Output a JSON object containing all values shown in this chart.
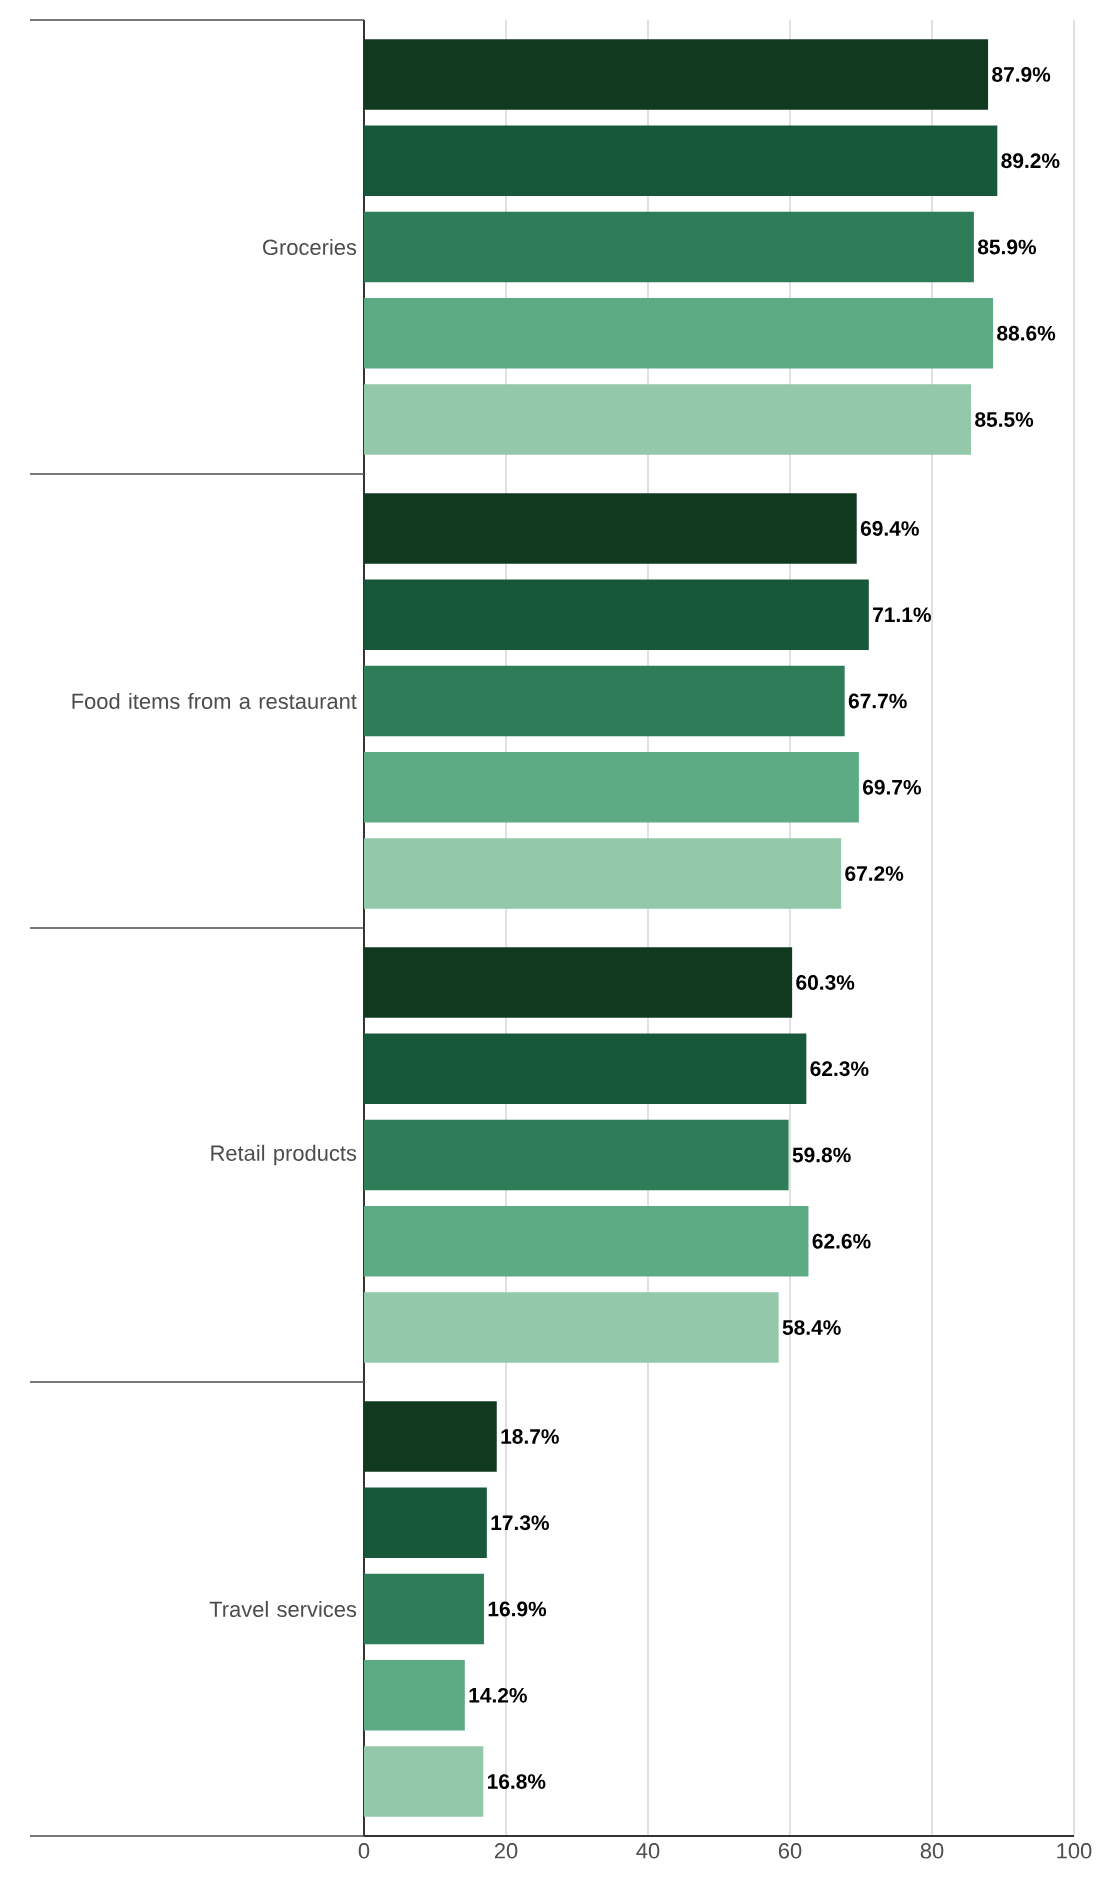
{
  "chart_data": {
    "type": "bar",
    "orientation": "horizontal",
    "categories": [
      "Groceries",
      "Food items from a restaurant",
      "Retail products",
      "Travel services"
    ],
    "series": [
      {
        "color": "#10391f",
        "values": [
          87.9,
          69.4,
          60.3,
          18.7
        ],
        "value_labels": [
          "87.9%",
          "69.4%",
          "60.3%",
          "18.7%"
        ]
      },
      {
        "color": "#17573a",
        "values": [
          89.2,
          71.1,
          62.3,
          17.3
        ],
        "value_labels": [
          "89.2%",
          "71.1%",
          "62.3%",
          "17.3%"
        ]
      },
      {
        "color": "#2f7d58",
        "values": [
          85.9,
          67.7,
          59.8,
          16.9
        ],
        "value_labels": [
          "85.9%",
          "67.7%",
          "59.8%",
          "16.9%"
        ]
      },
      {
        "color": "#5cab84",
        "values": [
          88.6,
          69.7,
          62.6,
          14.2
        ],
        "value_labels": [
          "88.6%",
          "69.7%",
          "62.6%",
          "14.2%"
        ]
      },
      {
        "color": "#93c8aa",
        "values": [
          85.5,
          67.2,
          58.4,
          16.8
        ],
        "value_labels": [
          "85.5%",
          "67.2%",
          "58.4%",
          "16.8%"
        ]
      }
    ],
    "xlim": [
      0,
      100
    ],
    "xticks": [
      0,
      20,
      40,
      60,
      80,
      100
    ],
    "grid": "x"
  }
}
